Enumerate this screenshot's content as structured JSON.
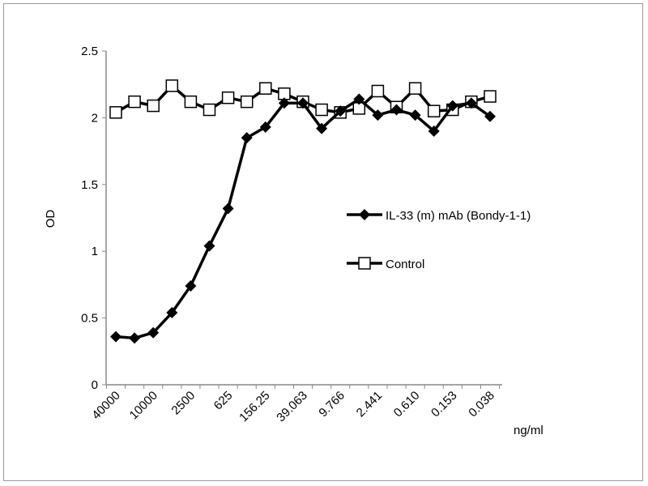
{
  "chart_data": {
    "type": "line",
    "title": "",
    "xlabel": "ng/ml",
    "ylabel": "OD",
    "ylim": [
      0,
      2.5
    ],
    "yticks": [
      "0",
      "0.5",
      "1",
      "1.5",
      "2",
      "2.5"
    ],
    "ytick_values": [
      0,
      0.5,
      1,
      1.5,
      2,
      2.5
    ],
    "x_tick_labels": [
      "40000",
      "10000",
      "2500",
      "625",
      "156.25",
      "39.063",
      "9.766",
      "2.441",
      "0.610",
      "0.153",
      "0.038"
    ],
    "x_tick_every": 2,
    "grid": false,
    "legend_position": "right",
    "series": [
      {
        "name": "IL-33 (m) mAb (Bondy-1-1)",
        "marker": "diamond-filled",
        "values": [
          0.36,
          0.35,
          0.39,
          0.54,
          0.74,
          1.04,
          1.32,
          1.85,
          1.93,
          2.11,
          2.11,
          1.92,
          2.05,
          2.14,
          2.02,
          2.06,
          2.02,
          1.9,
          2.09,
          2.11,
          2.01
        ]
      },
      {
        "name": "Control",
        "marker": "square-open",
        "values": [
          2.04,
          2.12,
          2.09,
          2.24,
          2.12,
          2.06,
          2.15,
          2.12,
          2.22,
          2.18,
          2.12,
          2.06,
          2.04,
          2.07,
          2.2,
          2.08,
          2.22,
          2.05,
          2.06,
          2.12,
          2.16
        ]
      }
    ]
  }
}
